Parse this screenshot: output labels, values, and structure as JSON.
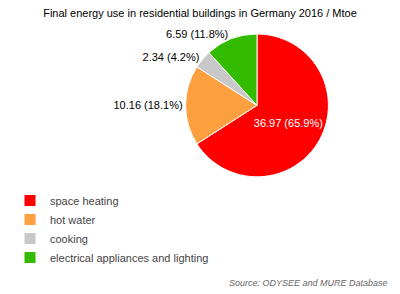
{
  "chart_data": {
    "type": "pie",
    "title": "Final energy use in residential buildings in Germany 2016 / Mtoe",
    "categories": [
      "space heating",
      "hot water",
      "cooking",
      "electrical appliances and lighting"
    ],
    "values": [
      36.97,
      10.16,
      2.34,
      6.59
    ],
    "value_labels": [
      "36.97 (65.9%)",
      "10.16 (18.1%)",
      "2.34 (4.2%)",
      "6.59 (11.8%)"
    ],
    "colors": [
      "#ff0000",
      "#ffa040",
      "#c8c8c8",
      "#33bb00"
    ],
    "data_labels": true,
    "legend": "lower left",
    "annotations": [
      "Source: ODYSEE and MURE Database"
    ]
  }
}
